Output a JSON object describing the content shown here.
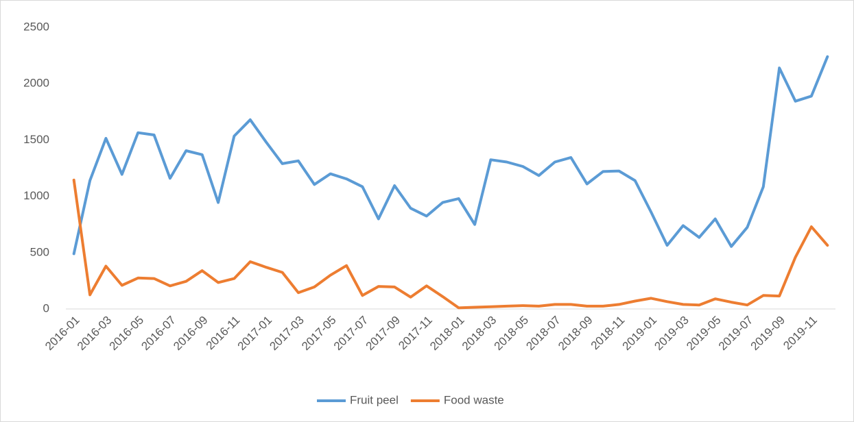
{
  "chart_data": {
    "type": "line",
    "categories": [
      "2016-01",
      null,
      "2016-03",
      null,
      "2016-05",
      null,
      "2016-07",
      null,
      "2016-09",
      null,
      "2016-11",
      null,
      "2017-01",
      null,
      "2017-03",
      null,
      "2017-05",
      null,
      "2017-07",
      null,
      "2017-09",
      null,
      "2017-11",
      null,
      "2018-01",
      null,
      "2018-03",
      null,
      "2018-05",
      null,
      "2018-07",
      null,
      "2018-09",
      null,
      "2018-11",
      null,
      "2019-01",
      null,
      "2019-03",
      null,
      "2019-05",
      null,
      "2019-07",
      null,
      "2019-09",
      null,
      "2019-11",
      null
    ],
    "series": [
      {
        "name": "Fruit peel",
        "color": "#5b9bd5",
        "values": [
          490,
          1140,
          1515,
          1195,
          1565,
          1545,
          1160,
          1405,
          1370,
          945,
          1535,
          1680,
          1480,
          1290,
          1315,
          1105,
          1200,
          1155,
          1085,
          800,
          1095,
          895,
          825,
          945,
          980,
          750,
          1325,
          1305,
          1265,
          1185,
          1305,
          1345,
          1110,
          1220,
          1225,
          1140,
          860,
          565,
          740,
          635,
          800,
          555,
          725,
          1085,
          2140,
          1845,
          1890,
          2240
        ]
      },
      {
        "name": "Food waste",
        "color": "#ed7d31",
        "values": [
          1145,
          125,
          380,
          210,
          275,
          270,
          205,
          245,
          340,
          235,
          270,
          420,
          370,
          325,
          145,
          195,
          300,
          385,
          120,
          200,
          195,
          105,
          205,
          110,
          10,
          15,
          20,
          25,
          30,
          25,
          40,
          40,
          25,
          25,
          40,
          70,
          95,
          65,
          40,
          35,
          90,
          60,
          35,
          120,
          115,
          460,
          730,
          565
        ]
      }
    ],
    "ylim": [
      0,
      2500
    ],
    "yticks": [
      0,
      500,
      1000,
      1500,
      2000,
      2500
    ],
    "grid": false,
    "legend": "bottom"
  }
}
